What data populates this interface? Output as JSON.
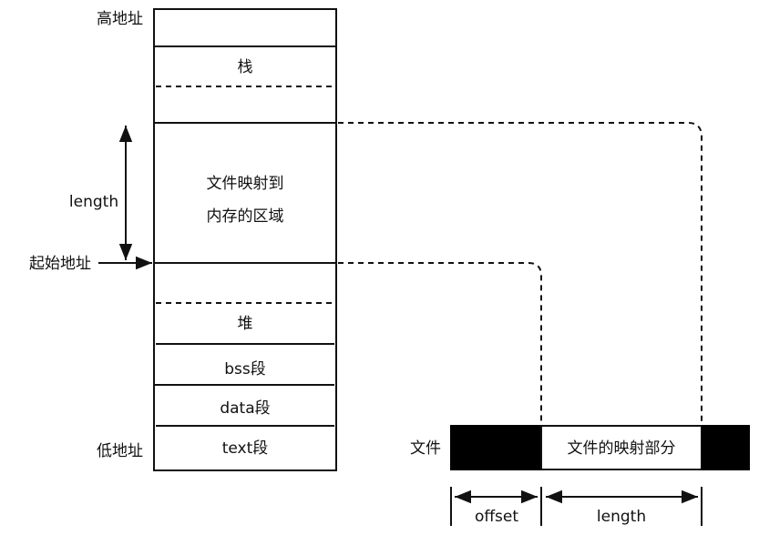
{
  "memory": {
    "high_address": "高地址",
    "low_address": "低地址",
    "start_address": "起始地址",
    "length_label": "length",
    "segments": {
      "stack": "栈",
      "mapping_line1": "文件映射到",
      "mapping_line2": "内存的区域",
      "heap": "堆",
      "bss": "bss段",
      "data": "data段",
      "text": "text段"
    }
  },
  "file": {
    "label": "文件",
    "mapped_part": "文件的映射部分",
    "offset_label": "offset",
    "length_label": "length"
  },
  "colors": {
    "stroke": "#111111",
    "file_fill": "#000000",
    "background": "#ffffff"
  }
}
